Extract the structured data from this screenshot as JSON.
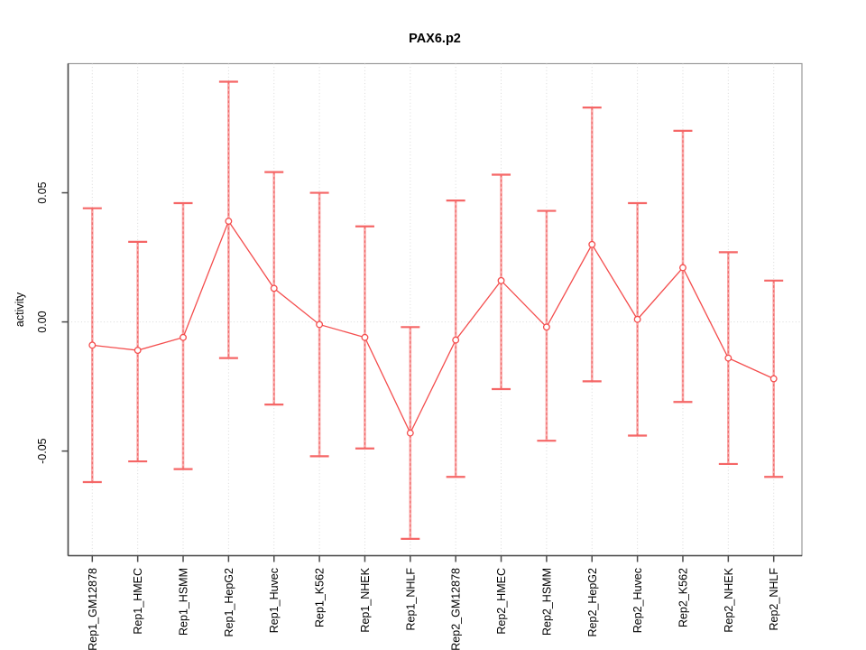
{
  "figure": {
    "title": "PAX6.p2",
    "ylabel": "activity",
    "xlabel": ""
  },
  "chart_data": {
    "type": "line",
    "subtype": "points-with-error-bars",
    "title": "PAX6.p2",
    "xlabel": "",
    "ylabel": "activity",
    "legend": "none",
    "grid": "dotted vertical gridline at every category; dotted horizontal line at y=0",
    "categories": [
      "Rep1_GM12878",
      "Rep1_HMEC",
      "Rep1_HSMM",
      "Rep1_HepG2",
      "Rep1_Huvec",
      "Rep1_K562",
      "Rep1_NHEK",
      "Rep1_NHLF",
      "Rep2_GM12878",
      "Rep2_HMEC",
      "Rep2_HSMM",
      "Rep2_HepG2",
      "Rep2_Huvec",
      "Rep2_K562",
      "Rep2_NHEK",
      "Rep2_NHLF"
    ],
    "series": [
      {
        "name": "activity",
        "values": [
          -0.009,
          -0.011,
          -0.006,
          0.039,
          0.013,
          -0.001,
          -0.006,
          -0.043,
          -0.007,
          0.016,
          -0.002,
          0.03,
          0.001,
          0.021,
          -0.014,
          -0.022
        ],
        "ci_upper": [
          0.044,
          0.031,
          0.046,
          0.093,
          0.058,
          0.05,
          0.037,
          -0.002,
          0.047,
          0.057,
          0.043,
          0.083,
          0.046,
          0.074,
          0.027,
          0.016
        ],
        "ci_lower": [
          -0.062,
          -0.054,
          -0.057,
          -0.014,
          -0.032,
          -0.052,
          -0.049,
          -0.084,
          -0.06,
          -0.026,
          -0.046,
          -0.023,
          -0.044,
          -0.031,
          -0.055,
          -0.06
        ]
      }
    ],
    "yticks": [
      0.05,
      0.0,
      -0.05
    ],
    "ytick_labels": [
      "0.05",
      "0.00",
      "-0.05"
    ],
    "ylim": [
      -0.0905,
      0.1
    ],
    "colors": {
      "point": "#f44d4d",
      "line": "#f44d4d",
      "whisker": "#f9a8a8",
      "whisker_dash": "#ef6262",
      "cap": "#f56666",
      "grid": "#d9d9d9",
      "axis": "#4a4a4a",
      "box": "#9a9a9a",
      "text": "#000000"
    }
  }
}
